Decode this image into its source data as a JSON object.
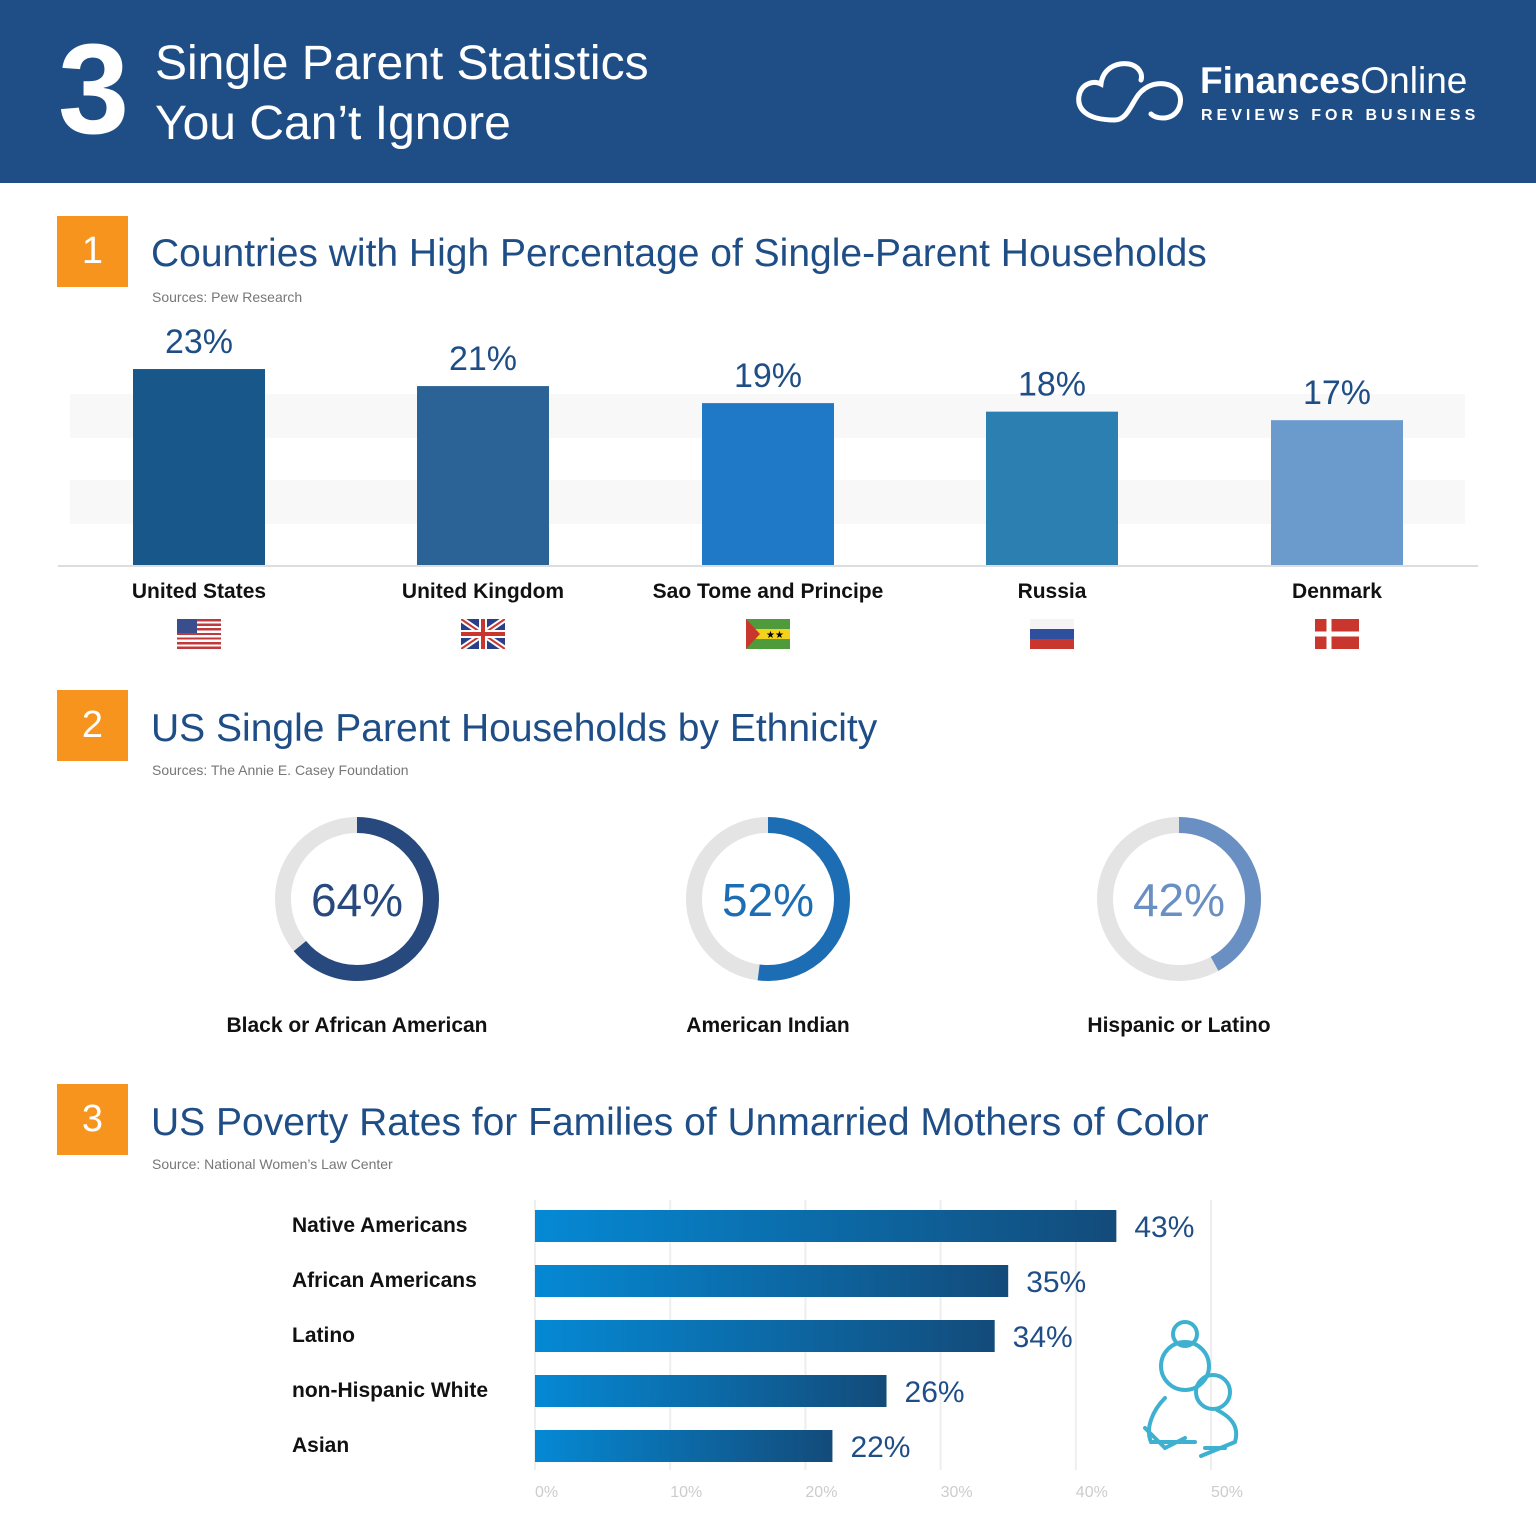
{
  "header": {
    "number": "3",
    "title_line1": "Single Parent Statistics",
    "title_line2": "You Can’t Ignore",
    "brand_bold": "Finances",
    "brand_light": "Online",
    "tagline": "REVIEWS FOR BUSINESS"
  },
  "sections": [
    {
      "number": "1",
      "title": "Countries with High Percentage of Single-Parent Households",
      "source": "Sources: Pew Research"
    },
    {
      "number": "2",
      "title": "US Single Parent Households by Ethnicity",
      "source": "Sources: The Annie E. Casey Foundation"
    },
    {
      "number": "3",
      "title": "US Poverty Rates for Families of Unmarried Mothers of Color",
      "source": "Source: National Women’s Law Center"
    }
  ],
  "chart_data": [
    {
      "type": "bar",
      "title": "Countries with High Percentage of Single-Parent Households",
      "categories": [
        "United States",
        "United Kingdom",
        "Sao Tome and Principe",
        "Russia",
        "Denmark"
      ],
      "values": [
        23,
        21,
        19,
        18,
        17
      ],
      "labels": [
        "23%",
        "21%",
        "19%",
        "18%",
        "17%"
      ],
      "colors": [
        "#17578a",
        "#2c6396",
        "#2079c6",
        "#2b7fb1",
        "#6b9bcd"
      ],
      "flags": [
        "us",
        "uk",
        "st",
        "ru",
        "dk"
      ]
    },
    {
      "type": "pie",
      "title": "US Single Parent Households by Ethnicity",
      "categories": [
        "Black or African American",
        "American Indian",
        "Hispanic or Latino"
      ],
      "values": [
        64,
        52,
        42
      ],
      "labels": [
        "64%",
        "52%",
        "42%"
      ],
      "colors": [
        "#28497d",
        "#1d6db4",
        "#6a8fc3"
      ]
    },
    {
      "type": "bar",
      "orientation": "horizontal",
      "title": "US Poverty Rates for Families of Unmarried Mothers of Color",
      "categories": [
        "Native Americans",
        "African Americans",
        "Latino",
        "non-Hispanic White",
        "Asian"
      ],
      "values": [
        43,
        35,
        34,
        26,
        22
      ],
      "labels": [
        "43%",
        "35%",
        "34%",
        "26%",
        "22%"
      ],
      "xlim": [
        0,
        50
      ],
      "xticks": [
        "0%",
        "10%",
        "20%",
        "30%",
        "40%",
        "50%"
      ]
    }
  ]
}
